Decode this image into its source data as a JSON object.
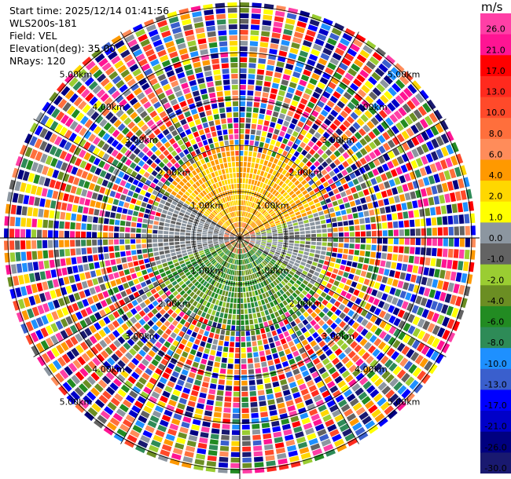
{
  "info": {
    "start_time": "Start time: 2025/12/14 01:41:56",
    "instrument": "WLS200s-181",
    "field": "Field: VEL",
    "elevation": "Elevation(deg): 35.00",
    "nrays": "NRays: 120"
  },
  "colorbar": {
    "unit": "m/s",
    "ticks": [
      "26.0",
      "21.0",
      "17.0",
      "13.0",
      "10.0",
      "8.0",
      "6.0",
      "4.0",
      "2.0",
      "1.0",
      "0.0",
      "-1.0",
      "-2.0",
      "-4.0",
      "-6.0",
      "-8.0",
      "-10.0",
      "-13.0",
      "-17.0",
      "-21.0",
      "-26.0",
      "-30.0"
    ],
    "colors": [
      "#ff3fa6",
      "#ff1493",
      "#ff0000",
      "#ff2a1e",
      "#ff4a2a",
      "#ff6f3c",
      "#ff8c5a",
      "#ff9900",
      "#ffd700",
      "#ffff00",
      "#8c96a0",
      "#636363",
      "#9acd32",
      "#6b8e23",
      "#228b22",
      "#2e8b57",
      "#1e90ff",
      "#3a5fcd",
      "#0000ff",
      "#0000c8",
      "#000080",
      "#191970"
    ]
  },
  "chart_data": {
    "type": "heatmap",
    "projection": "polar (PPI)",
    "title": "",
    "field": "VEL",
    "units": "m/s",
    "n_rays": 120,
    "range_rings": [
      {
        "label": "1.00km"
      },
      {
        "label": "2.00km"
      },
      {
        "label": "3.00km"
      },
      {
        "label": "4.00km"
      },
      {
        "label": "5.00km"
      }
    ],
    "color_levels": [
      -30.0,
      -26.0,
      -21.0,
      -17.0,
      -13.0,
      -10.0,
      -8.0,
      -6.0,
      -4.0,
      -2.0,
      -1.0,
      0.0,
      1.0,
      2.0,
      4.0,
      6.0,
      8.0,
      10.0,
      13.0,
      17.0,
      21.0,
      26.0
    ],
    "near_field_dominant_values": [
      "1.0 to 4.0 (north)",
      "-4.0 to -8.0 (south)",
      "0.0 (west/east)"
    ],
    "far_field": "noise spanning full colorbar range"
  }
}
